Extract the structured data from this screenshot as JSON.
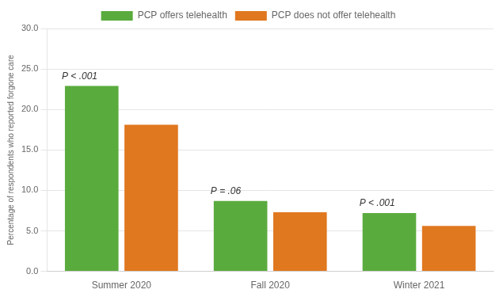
{
  "chart_data": {
    "type": "bar",
    "categories": [
      "Summer 2020",
      "Fall 2020",
      "Winter 2021"
    ],
    "series": [
      {
        "name": "PCP offers telehealth",
        "color": "#5aab3e",
        "values": [
          22.9,
          8.7,
          7.2
        ]
      },
      {
        "name": "PCP does not offer telehealth",
        "color": "#e07820",
        "values": [
          18.1,
          7.3,
          5.6
        ]
      }
    ],
    "ylabel": "Percentage of respondents who reported forgone care",
    "ylim": [
      0,
      30
    ],
    "yticks": [
      {
        "value": 0,
        "label": "0.0"
      },
      {
        "value": 5,
        "label": "5.0"
      },
      {
        "value": 10,
        "label": "10.0"
      },
      {
        "value": 15,
        "label": "15.0"
      },
      {
        "value": 20,
        "label": "20.0"
      },
      {
        "value": 25,
        "label": "25.0"
      },
      {
        "value": 30,
        "label": "30.0"
      }
    ],
    "annotations": [
      "P < .001",
      "P = .06",
      "P < .001"
    ],
    "grid": true,
    "legend": "top"
  }
}
